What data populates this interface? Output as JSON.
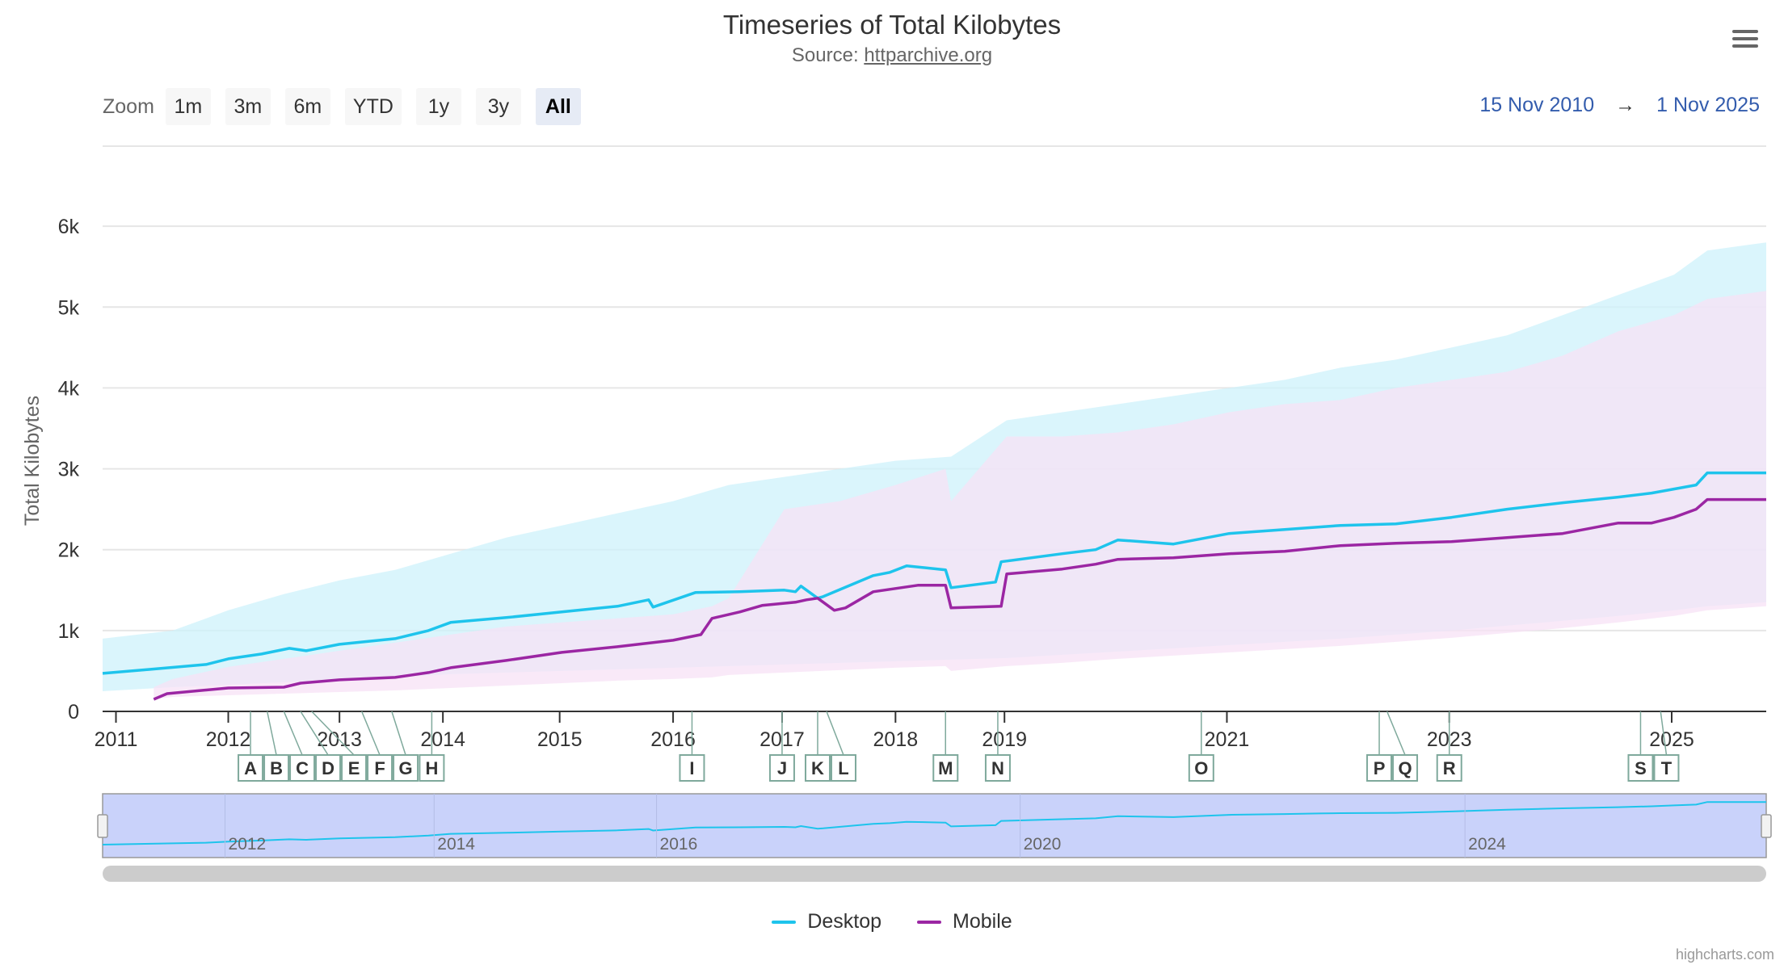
{
  "title": "Timeseries of Total Kilobytes",
  "subtitle_prefix": "Source: ",
  "subtitle_link": "httparchive.org",
  "zoom": {
    "label": "Zoom",
    "buttons": [
      "1m",
      "3m",
      "6m",
      "YTD",
      "1y",
      "3y",
      "All"
    ],
    "active": "All"
  },
  "range": {
    "from": "15 Nov 2010",
    "arrow": "→",
    "to": "1 Nov 2025"
  },
  "legend": [
    {
      "name": "Desktop",
      "color": "#1ec4ec"
    },
    {
      "name": "Mobile",
      "color": "#9b26a3"
    }
  ],
  "credits": "highcharts.com",
  "chart_data": {
    "type": "line",
    "title": "Timeseries of Total Kilobytes",
    "subtitle": "Source: httparchive.org",
    "ylabel": "Total Kilobytes",
    "ylim": [
      0,
      7000
    ],
    "yticks": [
      0,
      1000,
      2000,
      3000,
      4000,
      5000,
      6000
    ],
    "ytick_labels": [
      "0",
      "1k",
      "2k",
      "3k",
      "4k",
      "5k",
      "6k"
    ],
    "xlim": [
      2010.87,
      2025.83
    ],
    "xticks": [
      2011,
      2012,
      2013,
      2014,
      2015,
      2016,
      2017,
      2018,
      2019,
      2021,
      2023,
      2025
    ],
    "xtick_values": [
      2010.99,
      2012.0,
      2013.0,
      2013.93,
      2014.98,
      2016.0,
      2016.98,
      2018.0,
      2018.98,
      2020.98,
      2022.98,
      2024.98
    ],
    "series": [
      {
        "name": "Desktop",
        "color": "#1ec4ec",
        "x": [
          2010.87,
          2011.3,
          2011.8,
          2012.0,
          2012.3,
          2012.55,
          2012.7,
          2013.0,
          2013.5,
          2013.8,
          2014.0,
          2014.5,
          2015.0,
          2015.5,
          2015.78,
          2015.82,
          2016.2,
          2016.6,
          2017.0,
          2017.1,
          2017.15,
          2017.3,
          2017.35,
          2017.8,
          2017.95,
          2018.1,
          2018.45,
          2018.5,
          2018.9,
          2018.95,
          2019.5,
          2019.8,
          2020.0,
          2020.5,
          2021.0,
          2021.5,
          2021.8,
          2022.0,
          2022.5,
          2023.0,
          2023.5,
          2024.0,
          2024.5,
          2024.8,
          2025.0,
          2025.2,
          2025.3,
          2025.83
        ],
        "values": [
          470,
          520,
          580,
          650,
          710,
          780,
          750,
          830,
          900,
          1000,
          1100,
          1160,
          1230,
          1300,
          1380,
          1290,
          1470,
          1480,
          1500,
          1480,
          1550,
          1400,
          1420,
          1680,
          1720,
          1800,
          1750,
          1530,
          1600,
          1850,
          1950,
          2000,
          2120,
          2070,
          2200,
          2250,
          2280,
          2300,
          2320,
          2400,
          2500,
          2580,
          2650,
          2700,
          2750,
          2800,
          2950,
          2950
        ]
      },
      {
        "name": "Mobile",
        "color": "#9b26a3",
        "x": [
          2011.33,
          2011.45,
          2012.0,
          2012.5,
          2012.65,
          2013.0,
          2013.5,
          2013.8,
          2014.0,
          2014.5,
          2015.0,
          2015.5,
          2016.0,
          2016.25,
          2016.35,
          2016.6,
          2016.8,
          2017.1,
          2017.2,
          2017.3,
          2017.45,
          2017.55,
          2017.8,
          2017.95,
          2018.2,
          2018.45,
          2018.5,
          2018.95,
          2019.0,
          2019.5,
          2019.8,
          2020.0,
          2020.5,
          2021.0,
          2021.5,
          2022.0,
          2022.5,
          2023.0,
          2023.5,
          2024.0,
          2024.5,
          2024.8,
          2025.0,
          2025.2,
          2025.3,
          2025.83
        ],
        "values": [
          150,
          220,
          290,
          300,
          350,
          390,
          420,
          480,
          540,
          630,
          730,
          800,
          880,
          950,
          1150,
          1230,
          1310,
          1350,
          1380,
          1400,
          1250,
          1280,
          1480,
          1510,
          1560,
          1560,
          1280,
          1300,
          1700,
          1760,
          1820,
          1880,
          1900,
          1950,
          1980,
          2050,
          2080,
          2100,
          2150,
          2200,
          2330,
          2330,
          2400,
          2500,
          2620,
          2620
        ]
      }
    ],
    "bands": [
      {
        "series": "Desktop",
        "color": "#cdf2fb",
        "x": [
          2010.87,
          2011.5,
          2012.0,
          2012.5,
          2013.0,
          2013.5,
          2014.0,
          2014.5,
          2015.0,
          2015.5,
          2016.0,
          2016.5,
          2017.0,
          2017.5,
          2018.0,
          2018.5,
          2019.0,
          2019.5,
          2020.0,
          2020.5,
          2021.0,
          2021.5,
          2022.0,
          2022.5,
          2023.0,
          2023.5,
          2024.0,
          2024.5,
          2025.0,
          2025.3,
          2025.83
        ],
        "low": [
          250,
          300,
          330,
          360,
          390,
          420,
          460,
          480,
          500,
          520,
          540,
          560,
          580,
          600,
          620,
          640,
          660,
          700,
          740,
          780,
          820,
          860,
          900,
          950,
          1000,
          1060,
          1120,
          1180,
          1250,
          1300,
          1350
        ],
        "high": [
          900,
          1000,
          1250,
          1450,
          1620,
          1750,
          1950,
          2150,
          2300,
          2450,
          2600,
          2800,
          2900,
          3000,
          3100,
          3150,
          3600,
          3700,
          3800,
          3900,
          4000,
          4100,
          4250,
          4350,
          4500,
          4650,
          4900,
          5150,
          5400,
          5700,
          5800
        ]
      },
      {
        "series": "Mobile",
        "color": "#f7e1f5",
        "x": [
          2011.33,
          2011.5,
          2012.0,
          2012.5,
          2013.0,
          2013.5,
          2014.0,
          2014.5,
          2015.0,
          2015.5,
          2016.0,
          2016.35,
          2016.5,
          2017.0,
          2017.5,
          2018.0,
          2018.45,
          2018.5,
          2019.0,
          2019.5,
          2020.0,
          2020.5,
          2021.0,
          2021.5,
          2022.0,
          2022.5,
          2023.0,
          2023.5,
          2024.0,
          2024.5,
          2025.0,
          2025.3,
          2025.83
        ],
        "low": [
          150,
          180,
          200,
          220,
          240,
          260,
          290,
          320,
          350,
          380,
          400,
          420,
          450,
          480,
          510,
          540,
          560,
          500,
          560,
          600,
          650,
          690,
          730,
          770,
          810,
          860,
          910,
          970,
          1030,
          1100,
          1180,
          1250,
          1300
        ],
        "high": [
          300,
          400,
          550,
          650,
          750,
          850,
          950,
          1050,
          1100,
          1150,
          1200,
          1300,
          1400,
          2500,
          2600,
          2800,
          3000,
          2600,
          3400,
          3400,
          3450,
          3550,
          3700,
          3800,
          3850,
          4000,
          4100,
          4200,
          4400,
          4700,
          4900,
          5100,
          5200
        ]
      }
    ],
    "flags": [
      {
        "label": "A",
        "x": 2012.2
      },
      {
        "label": "B",
        "x": 2012.35
      },
      {
        "label": "C",
        "x": 2012.5
      },
      {
        "label": "D",
        "x": 2012.65
      },
      {
        "label": "E",
        "x": 2012.75
      },
      {
        "label": "F",
        "x": 2013.2
      },
      {
        "label": "G",
        "x": 2013.47
      },
      {
        "label": "H",
        "x": 2013.83
      },
      {
        "label": "I",
        "x": 2016.17
      },
      {
        "label": "J",
        "x": 2016.98
      },
      {
        "label": "K",
        "x": 2017.3
      },
      {
        "label": "L",
        "x": 2017.38
      },
      {
        "label": "M",
        "x": 2018.45
      },
      {
        "label": "N",
        "x": 2018.92
      },
      {
        "label": "O",
        "x": 2020.75
      },
      {
        "label": "P",
        "x": 2022.35
      },
      {
        "label": "Q",
        "x": 2022.42
      },
      {
        "label": "R",
        "x": 2022.98
      },
      {
        "label": "S",
        "x": 2024.7
      },
      {
        "label": "T",
        "x": 2024.88
      }
    ],
    "navigator": {
      "labels": [
        "2012",
        "2014",
        "2016",
        "2020",
        "2024"
      ],
      "label_values": [
        2012.0,
        2013.88,
        2015.88,
        2019.15,
        2023.15
      ]
    }
  }
}
